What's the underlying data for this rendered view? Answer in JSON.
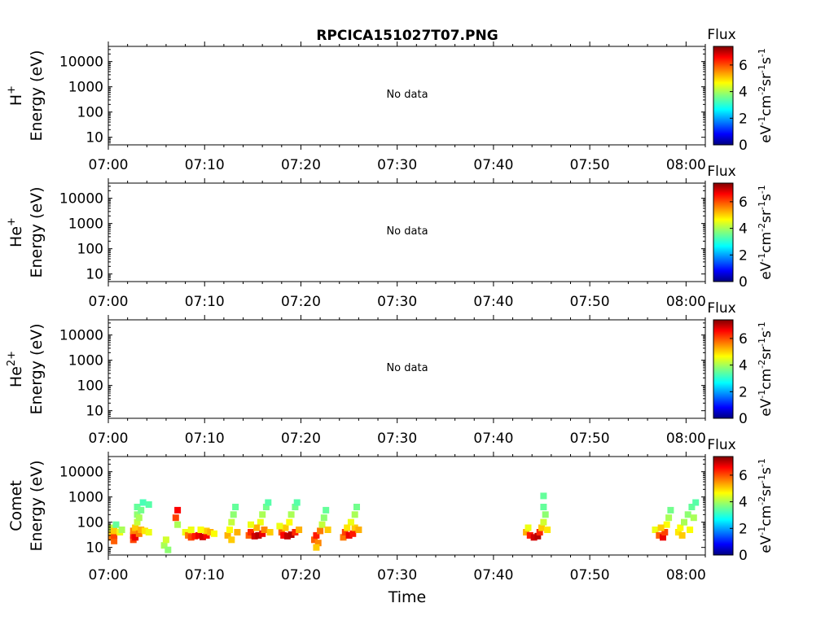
{
  "title": "RPCICA151027T07.PNG",
  "xlabel": "Time",
  "colorbar": {
    "label": "Flux",
    "unit": "eV⁻¹cm⁻²sr⁻¹s⁻¹",
    "unit_parts": [
      {
        "t": "eV"
      },
      {
        "t": "-1",
        "sup": true
      },
      {
        "t": "cm"
      },
      {
        "t": "-2",
        "sup": true
      },
      {
        "t": "sr"
      },
      {
        "t": "-1",
        "sup": true
      },
      {
        "t": "s"
      },
      {
        "t": "-1",
        "sup": true
      }
    ],
    "range": [
      0,
      7.4
    ],
    "ticks": [
      "0",
      "2",
      "4",
      "6"
    ],
    "colormap": "jet"
  },
  "x_ticks": [
    "07:00",
    "07:10",
    "07:20",
    "07:30",
    "07:40",
    "07:50",
    "08:00"
  ],
  "y_ticks": [
    "10",
    "100",
    "1000",
    "10000"
  ],
  "chart_data": [
    {
      "type": "heatmap",
      "ylabel_species": "H",
      "ylabel_sup": "+",
      "ylabel_unit": "Energy (eV)",
      "no_data_text": "No data",
      "xlim": [
        "07:00",
        "08:02"
      ],
      "ylim": [
        5,
        40000
      ],
      "yscale": "log",
      "cells": []
    },
    {
      "type": "heatmap",
      "ylabel_species": "He",
      "ylabel_sup": "+",
      "ylabel_unit": "Energy (eV)",
      "no_data_text": "No data",
      "xlim": [
        "07:00",
        "08:02"
      ],
      "ylim": [
        5,
        40000
      ],
      "yscale": "log",
      "cells": []
    },
    {
      "type": "heatmap",
      "ylabel_species": "He",
      "ylabel_sup": "2+",
      "ylabel_unit": "Energy (eV)",
      "no_data_text": "No data",
      "xlim": [
        "07:00",
        "08:02"
      ],
      "ylim": [
        5,
        40000
      ],
      "yscale": "log",
      "cells": []
    },
    {
      "type": "heatmap",
      "ylabel_species": "Comet",
      "ylabel_sup": "",
      "ylabel_unit": "Energy (eV)",
      "no_data_text": "",
      "xlim": [
        "07:00",
        "08:02"
      ],
      "ylim": [
        5,
        40000
      ],
      "yscale": "log",
      "cells_note": "bursts: [time (min after 07:00), energy (eV), flux]",
      "bursts": [
        [
          0.3,
          25,
          5.6
        ],
        [
          0.3,
          40,
          5.0
        ],
        [
          0.3,
          60,
          4.2
        ],
        [
          0.6,
          18,
          5.8
        ],
        [
          0.6,
          30,
          6.0
        ],
        [
          0.6,
          45,
          5.0
        ],
        [
          0.8,
          80,
          3.5
        ],
        [
          1.2,
          40,
          4.5
        ],
        [
          1.4,
          50,
          4.0
        ],
        [
          2.6,
          20,
          6.0
        ],
        [
          2.6,
          30,
          6.3
        ],
        [
          2.6,
          45,
          5.5
        ],
        [
          2.8,
          25,
          6.6
        ],
        [
          2.8,
          60,
          5.0
        ],
        [
          3.0,
          100,
          4.2
        ],
        [
          3.0,
          200,
          3.8
        ],
        [
          3.0,
          400,
          3.5
        ],
        [
          3.2,
          35,
          5.6
        ],
        [
          3.2,
          150,
          4.0
        ],
        [
          3.4,
          300,
          3.6
        ],
        [
          3.4,
          50,
          5.2
        ],
        [
          3.6,
          600,
          3.3
        ],
        [
          3.8,
          45,
          4.8
        ],
        [
          4.2,
          40,
          4.5
        ],
        [
          4.2,
          500,
          3.4
        ],
        [
          5.8,
          12,
          4.0
        ],
        [
          6.0,
          20,
          4.3
        ],
        [
          6.2,
          8,
          3.8
        ],
        [
          7.0,
          150,
          6.0
        ],
        [
          7.2,
          300,
          6.5
        ],
        [
          7.2,
          80,
          4.0
        ],
        [
          8.0,
          40,
          4.5
        ],
        [
          8.3,
          30,
          5.6
        ],
        [
          8.6,
          25,
          6.0
        ],
        [
          9.0,
          28,
          6.3
        ],
        [
          9.4,
          30,
          6.6
        ],
        [
          9.8,
          26,
          6.8
        ],
        [
          10.2,
          30,
          6.5
        ],
        [
          10.2,
          45,
          5.0
        ],
        [
          10.6,
          40,
          5.2
        ],
        [
          11.0,
          35,
          4.6
        ],
        [
          8.6,
          50,
          4.5
        ],
        [
          9.6,
          50,
          4.6
        ],
        [
          12.4,
          30,
          5.2
        ],
        [
          12.6,
          50,
          4.6
        ],
        [
          12.8,
          100,
          4.2
        ],
        [
          13.0,
          200,
          3.8
        ],
        [
          13.2,
          400,
          3.5
        ],
        [
          12.8,
          20,
          5.0
        ],
        [
          13.4,
          40,
          5.2
        ],
        [
          14.6,
          30,
          5.8
        ],
        [
          14.8,
          40,
          6.2
        ],
        [
          15.2,
          28,
          6.8
        ],
        [
          15.6,
          30,
          7.0
        ],
        [
          16.0,
          35,
          6.6
        ],
        [
          16.2,
          50,
          5.5
        ],
        [
          15.8,
          100,
          4.5
        ],
        [
          16.0,
          200,
          4.0
        ],
        [
          16.4,
          400,
          3.6
        ],
        [
          16.6,
          600,
          3.4
        ],
        [
          15.4,
          60,
          5.2
        ],
        [
          14.8,
          80,
          4.5
        ],
        [
          16.8,
          40,
          5.0
        ],
        [
          18.0,
          40,
          5.8
        ],
        [
          18.2,
          30,
          6.5
        ],
        [
          18.6,
          28,
          6.9
        ],
        [
          19.0,
          32,
          7.0
        ],
        [
          19.4,
          40,
          6.2
        ],
        [
          18.4,
          60,
          5.0
        ],
        [
          18.8,
          100,
          4.6
        ],
        [
          19.0,
          200,
          4.0
        ],
        [
          19.4,
          400,
          3.6
        ],
        [
          19.6,
          600,
          3.4
        ],
        [
          19.8,
          50,
          5.2
        ],
        [
          17.8,
          70,
          4.5
        ],
        [
          21.4,
          20,
          5.8
        ],
        [
          21.6,
          30,
          6.3
        ],
        [
          21.8,
          15,
          5.5
        ],
        [
          22.0,
          45,
          5.6
        ],
        [
          22.2,
          80,
          4.2
        ],
        [
          22.4,
          150,
          3.8
        ],
        [
          22.6,
          300,
          3.5
        ],
        [
          22.8,
          50,
          5.0
        ],
        [
          21.6,
          10,
          5.0
        ],
        [
          24.4,
          25,
          5.6
        ],
        [
          24.6,
          40,
          6.0
        ],
        [
          25.0,
          30,
          6.6
        ],
        [
          25.4,
          35,
          6.3
        ],
        [
          25.6,
          60,
          5.0
        ],
        [
          25.2,
          100,
          4.5
        ],
        [
          25.6,
          200,
          4.0
        ],
        [
          25.8,
          400,
          3.6
        ],
        [
          26.0,
          50,
          5.2
        ],
        [
          24.8,
          60,
          4.8
        ],
        [
          43.4,
          40,
          5.2
        ],
        [
          43.8,
          30,
          6.3
        ],
        [
          44.2,
          25,
          6.8
        ],
        [
          44.6,
          28,
          7.0
        ],
        [
          44.8,
          40,
          6.2
        ],
        [
          45.0,
          60,
          5.0
        ],
        [
          45.2,
          100,
          4.3
        ],
        [
          45.4,
          200,
          3.8
        ],
        [
          45.2,
          400,
          3.5
        ],
        [
          45.6,
          50,
          4.8
        ],
        [
          43.6,
          60,
          4.5
        ],
        [
          45.2,
          1100,
          3.5
        ],
        [
          56.8,
          50,
          4.5
        ],
        [
          57.2,
          30,
          5.8
        ],
        [
          57.6,
          25,
          6.6
        ],
        [
          57.8,
          40,
          6.0
        ],
        [
          58.0,
          80,
          4.6
        ],
        [
          58.2,
          150,
          4.0
        ],
        [
          58.4,
          300,
          3.6
        ],
        [
          57.4,
          60,
          5.0
        ],
        [
          59.2,
          40,
          4.8
        ],
        [
          59.4,
          60,
          4.6
        ],
        [
          59.6,
          30,
          5.0
        ],
        [
          59.8,
          100,
          4.0
        ],
        [
          60.2,
          200,
          3.8
        ],
        [
          60.6,
          400,
          3.5
        ],
        [
          60.4,
          50,
          4.6
        ],
        [
          60.8,
          150,
          4.0
        ],
        [
          61.0,
          600,
          3.4
        ]
      ]
    }
  ]
}
